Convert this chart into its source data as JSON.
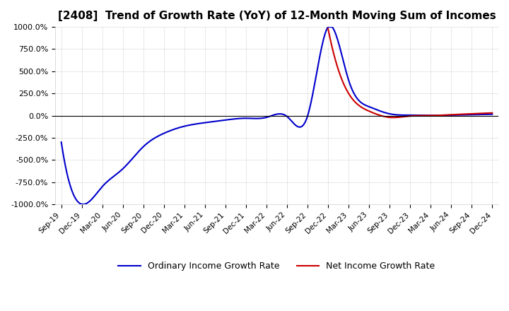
{
  "title": "[2408]  Trend of Growth Rate (YoY) of 12-Month Moving Sum of Incomes",
  "ylim": [
    -1000,
    1000
  ],
  "yticks": [
    -1000,
    -750,
    -500,
    -250,
    0,
    250,
    500,
    750,
    1000
  ],
  "ytick_labels": [
    "-1000.0%",
    "-750.0%",
    "-500.0%",
    "-250.0%",
    "0.0%",
    "250.0%",
    "500.0%",
    "750.0%",
    "1000.0%"
  ],
  "legend_labels": [
    "Ordinary Income Growth Rate",
    "Net Income Growth Rate"
  ],
  "line_colors": [
    "#0000cc",
    "#cc0000"
  ],
  "background_color": "#ffffff",
  "grid_color": "#aaaaaa",
  "dates": [
    "Sep-19",
    "Dec-19",
    "Mar-20",
    "Jun-20",
    "Sep-20",
    "Dec-20",
    "Mar-21",
    "Jun-21",
    "Sep-21",
    "Dec-21",
    "Mar-22",
    "Jun-22",
    "Sep-22",
    "Dec-22",
    "Mar-23",
    "Jun-23",
    "Sep-23",
    "Dec-23",
    "Mar-24",
    "Jun-24",
    "Sep-24",
    "Dec-24"
  ],
  "ordinary_income_growth": [
    -300,
    -1000,
    -800,
    -600,
    -350,
    -200,
    -120,
    -80,
    -50,
    -30,
    -20,
    -10,
    -5,
    1000,
    400,
    100,
    20,
    5,
    2,
    5,
    10,
    15
  ],
  "net_income_growth": [
    null,
    null,
    null,
    null,
    null,
    null,
    null,
    null,
    null,
    null,
    null,
    null,
    null,
    980,
    250,
    50,
    -20,
    -5,
    0,
    10,
    20,
    30
  ]
}
